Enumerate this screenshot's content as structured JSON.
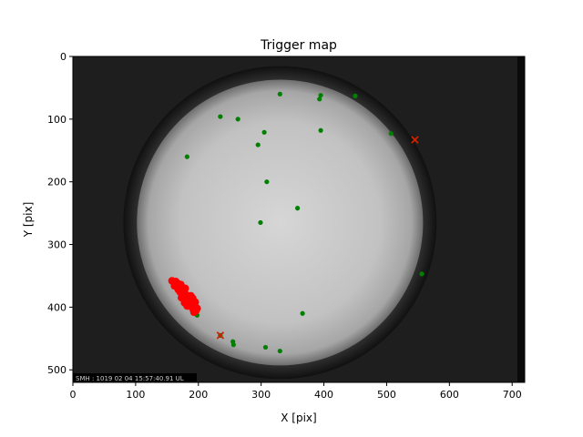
{
  "chart_data": {
    "type": "scatter",
    "title": "Trigger map",
    "xlabel": "X [pix]",
    "ylabel": "Y [pix]",
    "xlim": [
      0,
      720
    ],
    "ylim": [
      520,
      0
    ],
    "y_inverted": true,
    "grid": false,
    "x_ticks": [
      0,
      100,
      200,
      300,
      400,
      500,
      600,
      700
    ],
    "y_ticks": [
      0,
      100,
      200,
      300,
      400,
      500
    ],
    "background": {
      "kind": "fisheye all-sky camera image",
      "circle_center": [
        330,
        265
      ],
      "circle_radius": 240,
      "timestamp_overlay": "SMH : 1019 02 04 15:57:40.91 UL"
    },
    "series": [
      {
        "marker": "dot",
        "color": "#008000",
        "points": [
          [
            330,
            60
          ],
          [
            395,
            62
          ],
          [
            393,
            68
          ],
          [
            450,
            63
          ],
          [
            235,
            96
          ],
          [
            263,
            100
          ],
          [
            395,
            118
          ],
          [
            305,
            121
          ],
          [
            507,
            123
          ],
          [
            295,
            141
          ],
          [
            182,
            160
          ],
          [
            309,
            200
          ],
          [
            358,
            242
          ],
          [
            299,
            265
          ],
          [
            556,
            347
          ],
          [
            366,
            410
          ],
          [
            198,
            413
          ],
          [
            255,
            455
          ],
          [
            256,
            460
          ],
          [
            307,
            464
          ],
          [
            330,
            470
          ],
          [
            235,
            445
          ]
        ]
      },
      {
        "marker": "cluster",
        "color": "#ff0000",
        "points": [
          [
            158,
            358
          ],
          [
            161,
            360
          ],
          [
            164,
            359
          ],
          [
            167,
            362
          ],
          [
            162,
            366
          ],
          [
            166,
            368
          ],
          [
            170,
            367
          ],
          [
            172,
            364
          ],
          [
            174,
            372
          ],
          [
            171,
            376
          ],
          [
            168,
            372
          ],
          [
            175,
            378
          ],
          [
            177,
            382
          ],
          [
            173,
            385
          ],
          [
            179,
            388
          ],
          [
            181,
            384
          ],
          [
            183,
            390
          ],
          [
            178,
            393
          ],
          [
            185,
            394
          ],
          [
            187,
            390
          ],
          [
            189,
            396
          ],
          [
            184,
            398
          ],
          [
            190,
            400
          ],
          [
            192,
            404
          ],
          [
            194,
            398
          ],
          [
            196,
            406
          ],
          [
            198,
            402
          ],
          [
            193,
            408
          ],
          [
            186,
            386
          ],
          [
            180,
            380
          ],
          [
            176,
            370
          ],
          [
            188,
            382
          ],
          [
            195,
            392
          ],
          [
            182,
            398
          ],
          [
            179,
            370
          ],
          [
            191,
            386
          ]
        ]
      },
      {
        "marker": "x",
        "color": "#cc2200",
        "points": [
          [
            545,
            133
          ],
          [
            235,
            445
          ]
        ]
      }
    ]
  }
}
